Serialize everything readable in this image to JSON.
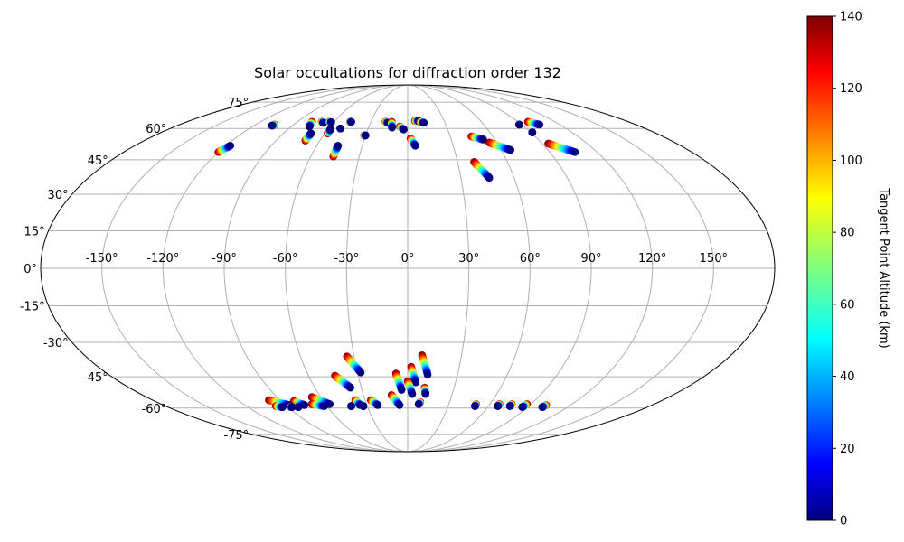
{
  "chart_data": {
    "type": "scatter",
    "projection": "mollweide",
    "title": "Solar occultations for diffraction order 132",
    "lon_ticks": [
      -150,
      -120,
      -90,
      -60,
      -30,
      0,
      30,
      60,
      90,
      120,
      150
    ],
    "lat_ticks": [
      -75,
      -60,
      -45,
      -30,
      -15,
      0,
      15,
      30,
      45,
      60,
      75
    ],
    "lon_tick_labels": [
      "-150°",
      "-120°",
      "-90°",
      "-60°",
      "-30°",
      "0°",
      "30°",
      "60°",
      "90°",
      "120°",
      "150°"
    ],
    "lat_tick_labels": [
      "-75°",
      "-60°",
      "-45°",
      "-30°",
      "-15°",
      "0°",
      "15°",
      "30°",
      "45°",
      "60°",
      "75°"
    ],
    "grid": true,
    "colorbar": {
      "label": "Tangent Point Altitude (km)",
      "min": 0,
      "max": 140,
      "ticks": [
        0,
        20,
        40,
        60,
        80,
        100,
        120,
        140
      ],
      "tick_labels": [
        "0",
        "20",
        "40",
        "60",
        "80",
        "100",
        "120",
        "140"
      ],
      "colormap": "jet"
    },
    "occultation_tracks": [
      {
        "lon_start": -120,
        "lat_start": 48.5,
        "lon_end": -117,
        "lat_end": 51.5
      },
      {
        "lon_start": -105,
        "lat_start": 62,
        "lon_end": -106,
        "lat_end": 61.5
      },
      {
        "lon_start": -78,
        "lat_start": 63.5,
        "lon_end": -76,
        "lat_end": 61
      },
      {
        "lon_start": -70,
        "lat_start": 63.5,
        "lon_end": -68,
        "lat_end": 63
      },
      {
        "lon_start": -70,
        "lat_start": 54,
        "lon_end": -70,
        "lat_end": 57.5
      },
      {
        "lon_start": -64,
        "lat_start": 63.5,
        "lon_end": -62,
        "lat_end": 63.3
      },
      {
        "lon_start": -58,
        "lat_start": 57.5,
        "lon_end": -58,
        "lat_end": 59.5
      },
      {
        "lon_start": -51,
        "lat_start": 60,
        "lon_end": -51,
        "lat_end": 60
      },
      {
        "lon_start": -47,
        "lat_start": 63.5,
        "lon_end": -46,
        "lat_end": 63.5
      },
      {
        "lon_start": -46,
        "lat_start": 46.5,
        "lon_end": -46,
        "lat_end": 51.5
      },
      {
        "lon_start": -31,
        "lat_start": 56.5,
        "lon_end": -30,
        "lat_end": 56.5
      },
      {
        "lon_start": -18,
        "lat_start": 63.5,
        "lon_end": -16,
        "lat_end": 63
      },
      {
        "lon_start": -13,
        "lat_start": 63.5,
        "lon_end": -12,
        "lat_end": 60.5
      },
      {
        "lon_start": -6,
        "lat_start": 61,
        "lon_end": -3,
        "lat_end": 59.5
      },
      {
        "lon_start": 2,
        "lat_start": 55,
        "lon_end": 5,
        "lat_end": 51.5
      },
      {
        "lon_start": 6,
        "lat_start": 64,
        "lon_end": 9,
        "lat_end": 64
      },
      {
        "lon_start": 10,
        "lat_start": 63.5,
        "lon_end": 13,
        "lat_end": 63
      },
      {
        "lon_start": 45,
        "lat_start": 56,
        "lon_end": 52,
        "lat_end": 54.5
      },
      {
        "lon_start": 55,
        "lat_start": 53,
        "lon_end": 66,
        "lat_end": 49.5
      },
      {
        "lon_start": 40,
        "lat_start": 44,
        "lon_end": 46,
        "lat_end": 37
      },
      {
        "lon_start": 88,
        "lat_start": 62,
        "lon_end": 88,
        "lat_end": 62
      },
      {
        "lon_start": 91,
        "lat_start": 58,
        "lon_end": 91,
        "lat_end": 58
      },
      {
        "lon_start": 98,
        "lat_start": 63.5,
        "lon_end": 104,
        "lat_end": 62
      },
      {
        "lon_start": 94,
        "lat_start": 52.5,
        "lon_end": 106,
        "lat_end": 48.5
      },
      {
        "lon_start": -34,
        "lat_start": -36,
        "lon_end": -28,
        "lat_end": -43
      },
      {
        "lon_start": -44,
        "lat_start": -44.5,
        "lon_end": -37,
        "lat_end": -50
      },
      {
        "lon_start": -7,
        "lat_start": -43.5,
        "lon_end": -4,
        "lat_end": -51
      },
      {
        "lon_start": 2,
        "lat_start": -40.5,
        "lon_end": 5,
        "lat_end": -47.5
      },
      {
        "lon_start": 8,
        "lat_start": -35.5,
        "lon_end": 12,
        "lat_end": -44
      },
      {
        "lon_start": 0,
        "lat_start": -47,
        "lon_end": 3,
        "lat_end": -53
      },
      {
        "lon_start": 11,
        "lat_start": -50,
        "lon_end": 12,
        "lat_end": -53
      },
      {
        "lon_start": 9,
        "lat_start": -57,
        "lon_end": 8,
        "lat_end": -58
      },
      {
        "lon_start": -11,
        "lat_start": -53.5,
        "lon_end": -6,
        "lat_end": -58.5
      },
      {
        "lon_start": -37,
        "lat_start": -56,
        "lon_end": -35,
        "lat_end": -58.5
      },
      {
        "lon_start": -42,
        "lat_start": -59,
        "lon_end": -42,
        "lat_end": -59
      },
      {
        "lon_start": -26,
        "lat_start": -56,
        "lon_end": -22,
        "lat_end": -58.5
      },
      {
        "lon_start": -33,
        "lat_start": -59,
        "lon_end": -33,
        "lat_end": -59
      },
      {
        "lon_start": -66,
        "lat_start": -54.5,
        "lon_end": -57,
        "lat_end": -58
      },
      {
        "lon_start": -70,
        "lat_start": -58,
        "lon_end": -62,
        "lat_end": -59
      },
      {
        "lon_start": -81,
        "lat_start": -56.5,
        "lon_end": -76,
        "lat_end": -58.5
      },
      {
        "lon_start": -83,
        "lat_start": -59,
        "lon_end": -82,
        "lat_end": -59.5
      },
      {
        "lon_start": -98,
        "lat_start": -56,
        "lon_end": -87,
        "lat_end": -58.5
      },
      {
        "lon_start": -98,
        "lat_start": -59,
        "lon_end": -94,
        "lat_end": -59.5
      },
      {
        "lon_start": -88,
        "lat_start": -59.5,
        "lon_end": -87,
        "lat_end": -59.5
      },
      {
        "lon_start": 50,
        "lat_start": -58,
        "lon_end": 50,
        "lat_end": -59
      },
      {
        "lon_start": 67,
        "lat_start": -58,
        "lon_end": 67,
        "lat_end": -59
      },
      {
        "lon_start": 76,
        "lat_start": -58,
        "lon_end": 76,
        "lat_end": -59
      },
      {
        "lon_start": 87,
        "lat_start": -58,
        "lon_end": 86,
        "lat_end": -59.5
      },
      {
        "lon_start": 102,
        "lat_start": -58.5,
        "lon_end": 101,
        "lat_end": -59.5
      }
    ]
  }
}
